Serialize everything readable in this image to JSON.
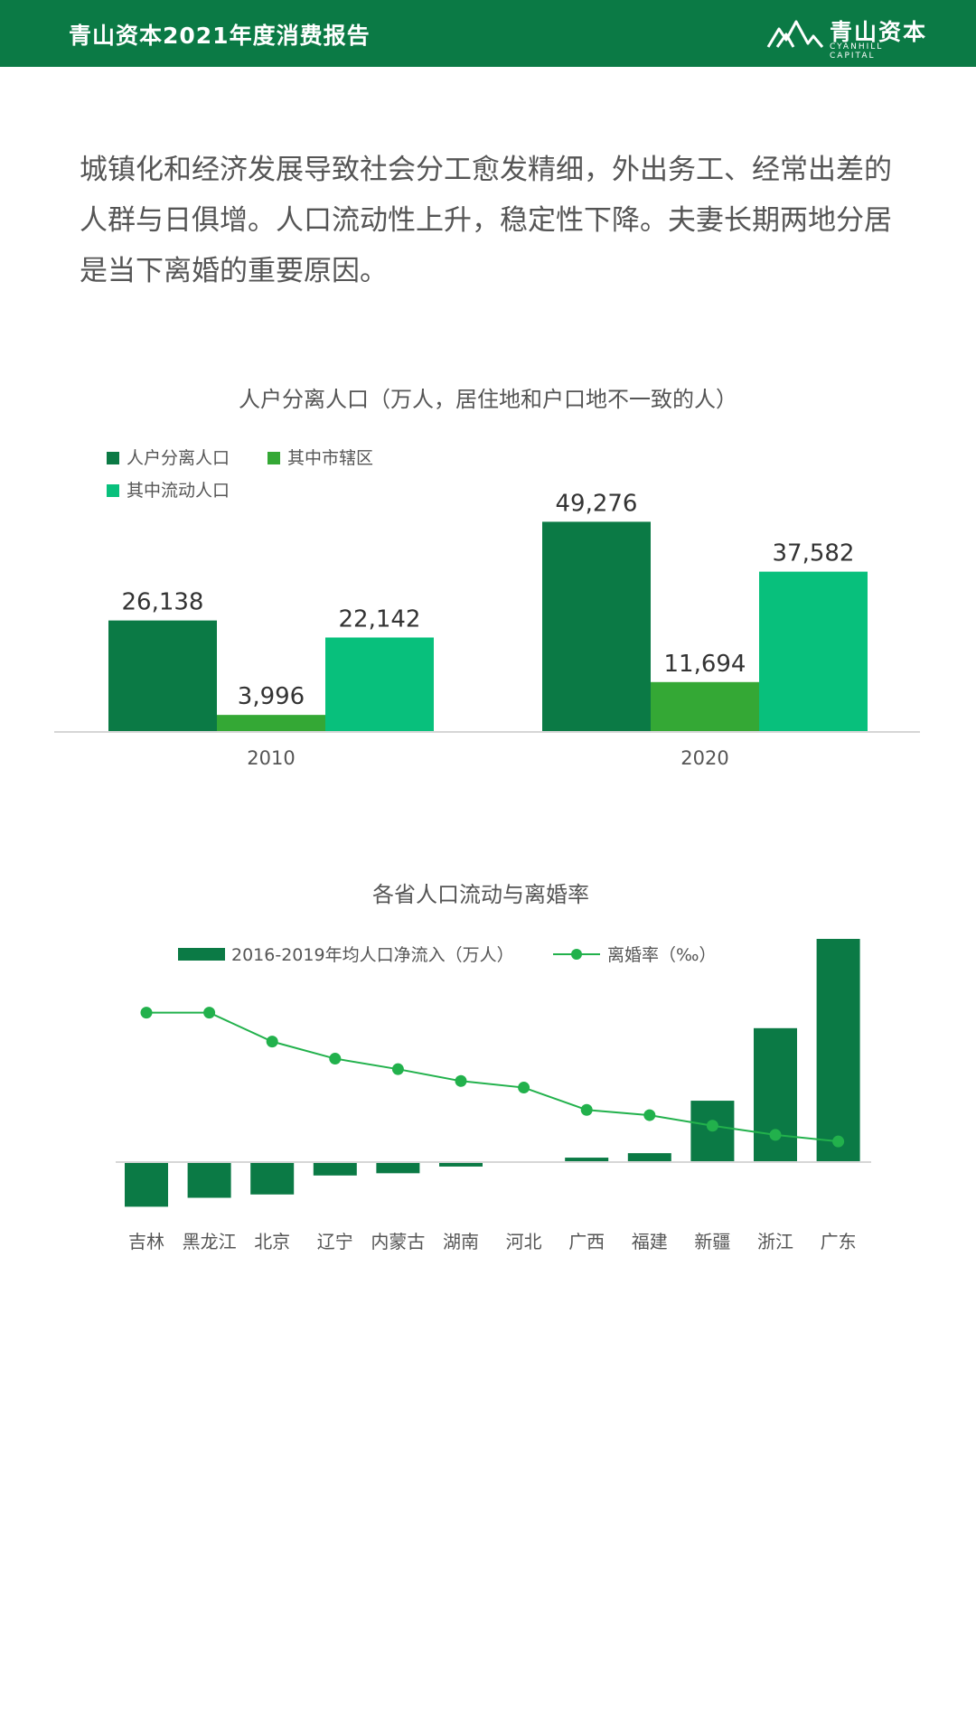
{
  "header": {
    "title": "青山资本2021年度消费报告",
    "brand_name": "青山资本",
    "brand_en": "CYANHILL CAPITAL"
  },
  "intro": "城镇化和经济发展导致社会分工愈发精细，外出务工、经常出差的人群与日俱增。人口流动性上升，稳定性下降。夫妻长期两地分居是当下离婚的重要原因。",
  "colors": {
    "header_bg": "#0b7a45",
    "dark_green": "#0b7a45",
    "mid_green": "#34a835",
    "bright_green": "#08c07c",
    "line_green": "#22b14c"
  },
  "chart_data": [
    {
      "type": "bar",
      "title": "人户分离人口（万人，居住地和户口地不一致的人）",
      "categories": [
        "2010",
        "2020"
      ],
      "series": [
        {
          "name": "人户分离人口",
          "values": [
            26138,
            49276
          ],
          "labels": [
            "26,138",
            "49,276"
          ],
          "color": "#0b7a45"
        },
        {
          "name": "其中市辖区",
          "values": [
            3996,
            11694
          ],
          "labels": [
            "3,996",
            "11,694"
          ],
          "color": "#34a835"
        },
        {
          "name": "其中流动人口",
          "values": [
            22142,
            37582
          ],
          "labels": [
            "22,142",
            "37,582"
          ],
          "color": "#08c07c"
        }
      ],
      "ylim": [
        0,
        50000
      ],
      "legend": "top-left"
    },
    {
      "type": "bar",
      "title": "各省人口流动与离婚率",
      "categories": [
        "吉林",
        "黑龙江",
        "北京",
        "辽宁",
        "内蒙古",
        "湖南",
        "河北",
        "广西",
        "福建",
        "新疆",
        "浙江",
        "广东"
      ],
      "series": [
        {
          "name": "2016-2019年均人口净流入（万人）",
          "kind": "bar",
          "values": [
            -40,
            -32,
            -29,
            -12,
            -10,
            -4,
            0,
            4,
            8,
            55,
            120,
            200
          ],
          "color": "#0b7a45"
        },
        {
          "name": "离婚率（‰）",
          "kind": "line",
          "values": [
            4.28,
            4.28,
            4.06,
            3.93,
            3.85,
            3.76,
            3.71,
            3.54,
            3.5,
            3.42,
            3.35,
            3.3
          ],
          "color": "#22b14c"
        }
      ],
      "bar_ylim": [
        -60,
        200
      ],
      "line_ylim": [
        2.6,
        4.8
      ],
      "legend": "top"
    }
  ]
}
